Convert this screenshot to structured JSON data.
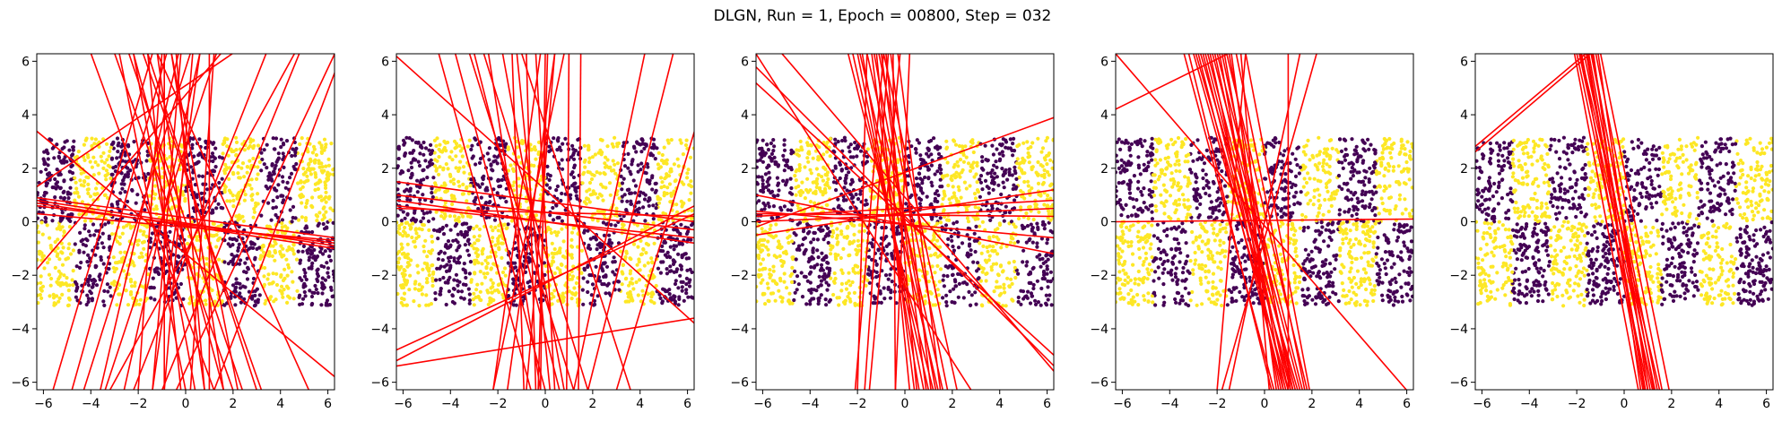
{
  "figure": {
    "suptitle": "DLGN, Run = 1, Epoch = 00800, Step = 032"
  },
  "colors": {
    "class_a": "#440154",
    "class_b": "#fde725",
    "boundary": "#ff0000",
    "frame": "#000000"
  },
  "chart_data": [
    {
      "type": "scatter",
      "panel": 1,
      "xlim": [
        -6.28,
        6.28
      ],
      "ylim": [
        -6.28,
        6.28
      ],
      "xticks": [
        -6,
        -4,
        -2,
        0,
        2,
        4,
        6
      ],
      "yticks": [
        -6,
        -4,
        -2,
        0,
        2,
        4,
        6
      ],
      "grid": false,
      "points_pattern": "checkerboard",
      "boundary_lines": [
        [
          -6.3,
          0.8,
          6.3,
          -0.9
        ],
        [
          -6.3,
          0.7,
          6.3,
          -1.0
        ],
        [
          -6.3,
          0.6,
          6.3,
          -0.8
        ],
        [
          -6.3,
          0.9,
          6.3,
          -0.6
        ],
        [
          -6.3,
          3.4,
          6.3,
          -5.8
        ],
        [
          -6.3,
          1.3,
          2.0,
          6.3
        ],
        [
          -6.3,
          -1.8,
          1.5,
          6.3
        ],
        [
          -4.0,
          6.3,
          1.2,
          -6.3
        ],
        [
          -3.0,
          6.3,
          2.0,
          -6.3
        ],
        [
          -2.2,
          6.3,
          0.4,
          -6.3
        ],
        [
          -1.6,
          6.3,
          -0.2,
          -6.3
        ],
        [
          -1.2,
          6.3,
          0.8,
          -6.3
        ],
        [
          -0.6,
          6.3,
          1.6,
          -6.3
        ],
        [
          -0.2,
          6.3,
          -1.4,
          -6.3
        ],
        [
          0.6,
          6.3,
          -2.6,
          -6.3
        ],
        [
          1.3,
          6.3,
          -3.4,
          -6.3
        ],
        [
          -5.6,
          -6.3,
          -1.4,
          6.3
        ],
        [
          -4.8,
          -6.3,
          -0.8,
          6.3
        ],
        [
          -4.3,
          -6.3,
          0.2,
          6.3
        ],
        [
          -2.0,
          -6.3,
          -1.0,
          6.3
        ],
        [
          -1.4,
          -6.3,
          0.6,
          6.3
        ],
        [
          0.2,
          -6.3,
          1.2,
          6.3
        ],
        [
          0.8,
          -6.3,
          -0.4,
          6.3
        ],
        [
          1.6,
          -6.3,
          -2.2,
          6.3
        ],
        [
          2.2,
          -6.3,
          -0.6,
          6.3
        ],
        [
          3.0,
          -6.3,
          -1.6,
          6.3
        ],
        [
          6.3,
          5.6,
          1.2,
          -6.3
        ],
        [
          6.3,
          6.3,
          -0.4,
          -6.3
        ],
        [
          4.6,
          6.3,
          -3.2,
          -6.3
        ],
        [
          3.4,
          6.3,
          -2.2,
          -6.3
        ],
        [
          -6.3,
          0.3,
          6.3,
          -0.7
        ],
        [
          -2.4,
          6.3,
          2.4,
          -6.3
        ],
        [
          -0.9,
          6.3,
          -0.9,
          -6.3
        ],
        [
          -1.8,
          6.3,
          3.2,
          -6.3
        ],
        [
          0.3,
          6.3,
          -0.9,
          -6.3
        ],
        [
          -3.6,
          -6.3,
          -0.3,
          6.3
        ],
        [
          -1.0,
          -6.3,
          4.8,
          6.3
        ],
        [
          5.2,
          -6.3,
          -1.2,
          6.3
        ],
        [
          1.0,
          -6.3,
          1.0,
          6.3
        ],
        [
          -2.8,
          6.3,
          0.0,
          -6.3
        ]
      ]
    },
    {
      "type": "scatter",
      "panel": 2,
      "xlim": [
        -6.28,
        6.28
      ],
      "ylim": [
        -6.28,
        6.28
      ],
      "xticks": [
        -6,
        -4,
        -2,
        0,
        2,
        4,
        6
      ],
      "yticks": [
        -6,
        -4,
        -2,
        0,
        2,
        4,
        6
      ],
      "grid": false,
      "points_pattern": "checkerboard",
      "boundary_lines": [
        [
          -6.3,
          0.8,
          6.3,
          -0.8
        ],
        [
          -6.3,
          0.6,
          6.3,
          -0.6
        ],
        [
          -6.3,
          0.5,
          6.3,
          0.2
        ],
        [
          -6.3,
          1.0,
          6.3,
          -0.3
        ],
        [
          -6.3,
          -4.8,
          6.3,
          0.3
        ],
        [
          -6.3,
          -5.2,
          6.3,
          0.6
        ],
        [
          -6.3,
          -5.4,
          6.3,
          -3.6
        ],
        [
          -6.3,
          6.2,
          6.3,
          -3.8
        ],
        [
          -4.5,
          6.3,
          -0.6,
          -6.3
        ],
        [
          -3.8,
          6.3,
          0.0,
          -6.3
        ],
        [
          -3.0,
          6.3,
          0.6,
          -6.3
        ],
        [
          -2.4,
          6.3,
          -0.2,
          -6.3
        ],
        [
          -1.8,
          6.3,
          0.8,
          -6.3
        ],
        [
          -1.2,
          6.3,
          0.2,
          -6.3
        ],
        [
          -0.8,
          6.3,
          -0.4,
          -6.3
        ],
        [
          -0.4,
          6.3,
          0.4,
          -6.3
        ],
        [
          0.0,
          6.3,
          -0.2,
          -6.3
        ],
        [
          0.4,
          6.3,
          -0.8,
          -6.3
        ],
        [
          1.0,
          6.3,
          0.9,
          -6.3
        ],
        [
          1.5,
          6.3,
          1.4,
          -6.3
        ],
        [
          -2.2,
          -6.3,
          -0.2,
          6.3
        ],
        [
          -1.6,
          -6.3,
          0.4,
          6.3
        ],
        [
          -0.9,
          -6.3,
          -1.4,
          6.3
        ],
        [
          -0.3,
          -6.3,
          0.1,
          6.3
        ],
        [
          1.2,
          -6.3,
          4.2,
          6.3
        ],
        [
          1.8,
          -6.3,
          5.4,
          6.3
        ],
        [
          3.0,
          -6.3,
          6.3,
          3.4
        ],
        [
          -1.0,
          6.3,
          3.6,
          -6.3
        ],
        [
          -2.6,
          6.3,
          1.8,
          -6.3
        ],
        [
          0.8,
          6.3,
          -2.2,
          -6.3
        ],
        [
          -6.3,
          1.5,
          6.3,
          0.0
        ],
        [
          -3.2,
          6.3,
          1.2,
          -6.3
        ]
      ]
    },
    {
      "type": "scatter",
      "panel": 3,
      "xlim": [
        -6.28,
        6.28
      ],
      "ylim": [
        -6.28,
        6.28
      ],
      "xticks": [
        -6,
        -4,
        -2,
        0,
        2,
        4,
        6
      ],
      "yticks": [
        -6,
        -4,
        -2,
        0,
        2,
        4,
        6
      ],
      "grid": false,
      "points_pattern": "checkerboard",
      "boundary_lines": [
        [
          -6.3,
          0.2,
          6.3,
          0.8
        ],
        [
          -6.3,
          0.0,
          6.3,
          0.5
        ],
        [
          -6.3,
          -0.5,
          6.3,
          1.2
        ],
        [
          -6.3,
          1.0,
          6.3,
          -1.2
        ],
        [
          -6.3,
          -0.2,
          6.3,
          3.9
        ],
        [
          -6.3,
          5.8,
          6.3,
          -5.4
        ],
        [
          -6.3,
          5.2,
          6.3,
          -5.0
        ],
        [
          -6.3,
          6.3,
          2.8,
          -6.3
        ],
        [
          -2.4,
          6.3,
          1.2,
          -6.3
        ],
        [
          -2.2,
          6.3,
          1.0,
          -6.3
        ],
        [
          -2.0,
          6.3,
          0.8,
          -6.3
        ],
        [
          -1.9,
          6.3,
          1.4,
          -6.3
        ],
        [
          -1.8,
          6.3,
          0.6,
          -6.3
        ],
        [
          -1.6,
          6.3,
          1.6,
          -6.3
        ],
        [
          -1.4,
          6.3,
          0.4,
          -6.3
        ],
        [
          -1.3,
          6.3,
          1.3,
          -6.3
        ],
        [
          -1.2,
          6.3,
          0.2,
          -6.3
        ],
        [
          -1.1,
          6.3,
          1.8,
          -6.3
        ],
        [
          -1.0,
          6.3,
          0.9,
          -6.3
        ],
        [
          -0.9,
          6.3,
          2.2,
          -6.3
        ],
        [
          -0.8,
          6.3,
          0.5,
          -6.3
        ],
        [
          -0.6,
          6.3,
          1.1,
          -6.3
        ],
        [
          -0.5,
          6.3,
          -0.4,
          -6.3
        ],
        [
          -0.3,
          6.3,
          1.5,
          -6.3
        ],
        [
          -2.1,
          -6.3,
          -0.9,
          6.3
        ],
        [
          -1.7,
          -6.3,
          -0.7,
          6.3
        ],
        [
          -1.5,
          -6.3,
          -0.2,
          6.3
        ],
        [
          -0.4,
          -6.3,
          0.2,
          6.3
        ],
        [
          -6.3,
          0.4,
          6.3,
          -0.6
        ],
        [
          -6.3,
          0.3,
          6.3,
          0.2
        ],
        [
          -5.2,
          6.3,
          6.3,
          -5.6
        ],
        [
          -1.6,
          6.3,
          -2.0,
          -6.3
        ]
      ]
    },
    {
      "type": "scatter",
      "panel": 4,
      "xlim": [
        -6.28,
        6.28
      ],
      "ylim": [
        -6.28,
        6.28
      ],
      "xticks": [
        -6,
        -4,
        -2,
        0,
        2,
        4,
        6
      ],
      "yticks": [
        -6,
        -4,
        -2,
        0,
        2,
        4,
        6
      ],
      "grid": false,
      "points_pattern": "checkerboard",
      "boundary_lines": [
        [
          -3.0,
          6.3,
          1.0,
          -6.3
        ],
        [
          -2.9,
          6.3,
          1.2,
          -6.3
        ],
        [
          -2.8,
          6.3,
          0.8,
          -6.3
        ],
        [
          -2.7,
          6.3,
          1.4,
          -6.3
        ],
        [
          -2.6,
          6.3,
          0.9,
          -6.3
        ],
        [
          -2.5,
          6.3,
          1.1,
          -6.3
        ],
        [
          -2.4,
          6.3,
          1.3,
          -6.3
        ],
        [
          -2.3,
          6.3,
          0.7,
          -6.3
        ],
        [
          -2.2,
          6.3,
          1.5,
          -6.3
        ],
        [
          -2.1,
          6.3,
          1.0,
          -6.3
        ],
        [
          -2.0,
          6.3,
          1.6,
          -6.3
        ],
        [
          -1.9,
          6.3,
          0.6,
          -6.3
        ],
        [
          -1.8,
          6.3,
          1.2,
          -6.3
        ],
        [
          -1.7,
          6.3,
          0.8,
          -6.3
        ],
        [
          -1.6,
          6.3,
          1.8,
          -6.3
        ],
        [
          -1.5,
          6.3,
          1.1,
          -6.3
        ],
        [
          -1.4,
          6.3,
          0.5,
          -6.3
        ],
        [
          -1.2,
          6.3,
          1.7,
          -6.3
        ],
        [
          -3.4,
          6.3,
          0.4,
          -6.3
        ],
        [
          -3.2,
          6.3,
          0.3,
          -6.3
        ],
        [
          -1.0,
          6.3,
          0.2,
          -6.3
        ],
        [
          -0.8,
          6.3,
          1.9,
          -6.3
        ],
        [
          -2.0,
          -6.3,
          -0.8,
          6.3
        ],
        [
          -1.5,
          -6.3,
          1.5,
          6.3
        ],
        [
          -6.3,
          4.2,
          -1.5,
          6.3
        ],
        [
          -6.3,
          6.3,
          6.0,
          -6.3
        ],
        [
          -6.3,
          0.0,
          6.3,
          0.1
        ],
        [
          1.0,
          6.3,
          1.0,
          -6.3
        ],
        [
          2.2,
          6.3,
          -1.8,
          -6.3
        ]
      ]
    },
    {
      "type": "scatter",
      "panel": 5,
      "xlim": [
        -6.28,
        6.28
      ],
      "ylim": [
        -6.28,
        6.28
      ],
      "xticks": [
        -6,
        -4,
        -2,
        0,
        2,
        4,
        6
      ],
      "yticks": [
        -6,
        -4,
        -2,
        0,
        2,
        4,
        6
      ],
      "grid": false,
      "points_pattern": "checkerboard",
      "boundary_lines": [
        [
          -2.0,
          6.3,
          1.0,
          -6.3
        ],
        [
          -1.9,
          6.3,
          1.2,
          -6.3
        ],
        [
          -1.8,
          6.3,
          0.8,
          -6.3
        ],
        [
          -1.7,
          6.3,
          1.3,
          -6.3
        ],
        [
          -1.6,
          6.3,
          0.9,
          -6.3
        ],
        [
          -1.5,
          6.3,
          1.1,
          -6.3
        ],
        [
          -1.4,
          6.3,
          1.4,
          -6.3
        ],
        [
          -1.3,
          6.3,
          0.7,
          -6.3
        ],
        [
          -1.2,
          6.3,
          1.6,
          -6.3
        ],
        [
          -1.1,
          6.3,
          1.0,
          -6.3
        ],
        [
          -1.0,
          6.3,
          1.9,
          -6.3
        ],
        [
          -2.1,
          6.3,
          0.6,
          -6.3
        ],
        [
          -1.85,
          6.3,
          1.5,
          -6.3
        ],
        [
          -1.55,
          6.3,
          0.85,
          -6.3
        ],
        [
          -1.35,
          6.3,
          1.25,
          -6.3
        ],
        [
          -6.3,
          2.6,
          -1.4,
          6.3
        ],
        [
          -6.3,
          2.8,
          -1.6,
          6.3
        ]
      ]
    }
  ]
}
